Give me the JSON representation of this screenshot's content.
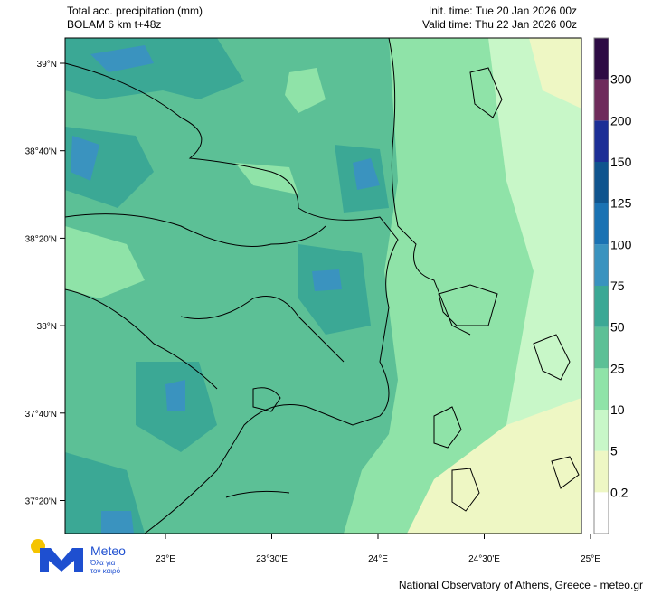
{
  "header": {
    "title": "Total acc. precipitation (mm)",
    "subtitle": "BOLAM 6 km t+48z",
    "init_time": "Init. time: Tue 20 Jan 2026 00z",
    "valid_time": "Valid time: Thu 22 Jan 2026 00z"
  },
  "lat_ticks": [
    "39°N",
    "38°40'N",
    "38°20'N",
    "38°N",
    "37°40'N",
    "37°20'N"
  ],
  "lon_ticks": [
    "23°E",
    "23°30'E",
    "24°E",
    "24°30'E",
    "25°E"
  ],
  "colorbar": {
    "labels": [
      0.2,
      5,
      10,
      25,
      50,
      75,
      100,
      125,
      150,
      200,
      300
    ],
    "colors": [
      "#ffffff",
      "#eef7c4",
      "#c8f7c8",
      "#8fe3a8",
      "#5cc096",
      "#3ba895",
      "#3a93bf",
      "#1a72b3",
      "#0f548e",
      "#1c2e96",
      "#6e2b5b",
      "#2d0b44"
    ]
  },
  "logo": {
    "name": "Meteo",
    "tagline_1": "Όλα για",
    "tagline_2": "τον καιρό"
  },
  "footer": "National Observatory of Athens, Greece - meteo.gr"
}
